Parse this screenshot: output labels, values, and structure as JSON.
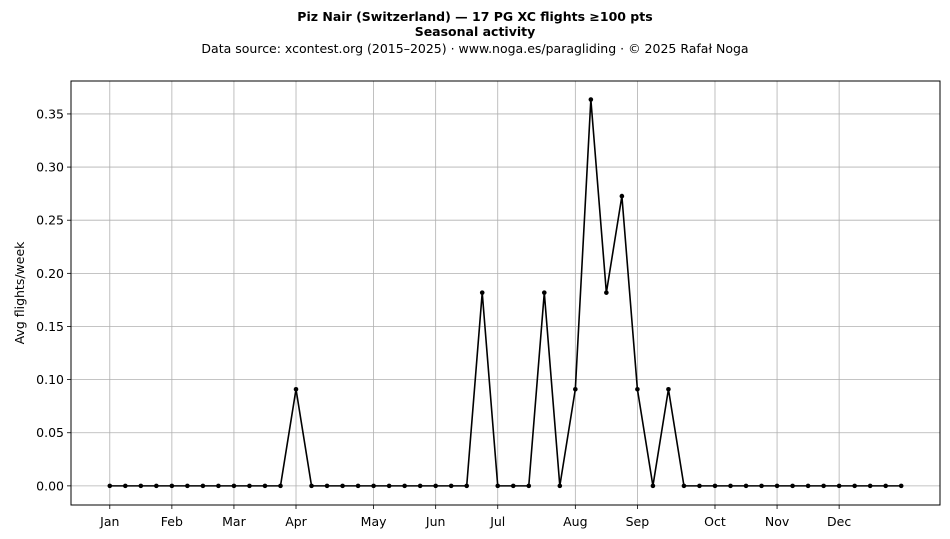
{
  "titles": {
    "line1": "Piz Nair (Switzerland)  —  17 PG XC flights ≥100 pts",
    "line2": "Seasonal activity",
    "line3": "Data source: xcontest.org (2015–2025)  ·  www.noga.es/paragliding  ·  © 2025 Rafał Noga"
  },
  "chart_data": {
    "type": "line",
    "title": "Piz Nair (Switzerland)  —  17 PG XC flights ≥100 pts",
    "subtitle": "Seasonal activity",
    "xlabel": "",
    "ylabel": "Avg flights/week",
    "x_unit": "week",
    "x_range": [
      -1.5,
      54.5
    ],
    "ylim": [
      -0.018,
      0.381
    ],
    "x_ticks": [
      {
        "label": "Jan",
        "week": 1
      },
      {
        "label": "Feb",
        "week": 5
      },
      {
        "label": "Mar",
        "week": 9
      },
      {
        "label": "Apr",
        "week": 13
      },
      {
        "label": "May",
        "week": 18
      },
      {
        "label": "Jun",
        "week": 22
      },
      {
        "label": "Jul",
        "week": 26
      },
      {
        "label": "Aug",
        "week": 31
      },
      {
        "label": "Sep",
        "week": 35
      },
      {
        "label": "Oct",
        "week": 40
      },
      {
        "label": "Nov",
        "week": 44
      },
      {
        "label": "Dec",
        "week": 48
      }
    ],
    "y_ticks": [
      0.0,
      0.05,
      0.1,
      0.15,
      0.2,
      0.25,
      0.3,
      0.35
    ],
    "y_tick_labels": [
      "0.00",
      "0.05",
      "0.10",
      "0.15",
      "0.20",
      "0.25",
      "0.30",
      "0.35"
    ],
    "grid": true,
    "series": [
      {
        "color": "#000000",
        "x": [
          1,
          2,
          3,
          4,
          5,
          6,
          7,
          8,
          9,
          10,
          11,
          12,
          13,
          14,
          15,
          16,
          17,
          18,
          19,
          20,
          21,
          22,
          23,
          24,
          25,
          26,
          27,
          28,
          29,
          30,
          31,
          32,
          33,
          34,
          35,
          36,
          37,
          38,
          39,
          40,
          41,
          42,
          43,
          44,
          45,
          46,
          47,
          48,
          49,
          50,
          51,
          52
        ],
        "values": [
          0,
          0,
          0,
          0,
          0,
          0,
          0,
          0,
          0,
          0,
          0,
          0,
          0.0909,
          0,
          0,
          0,
          0,
          0,
          0,
          0,
          0,
          0,
          0,
          0,
          0.1818,
          0,
          0,
          0,
          0.1818,
          0,
          0.0909,
          0.3636,
          0.1818,
          0.2727,
          0.0909,
          0,
          0.0909,
          0,
          0,
          0,
          0,
          0,
          0,
          0,
          0,
          0,
          0,
          0,
          0,
          0,
          0,
          0
        ]
      }
    ]
  }
}
